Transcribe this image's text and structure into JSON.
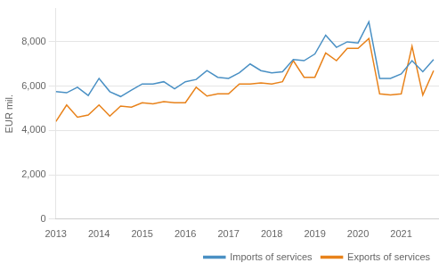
{
  "chart_data": {
    "type": "line",
    "y_label": "EUR mil.",
    "x": [
      2013,
      2013.25,
      2013.5,
      2013.75,
      2014,
      2014.25,
      2014.5,
      2014.75,
      2015,
      2015.25,
      2015.5,
      2015.75,
      2016,
      2016.25,
      2016.5,
      2016.75,
      2017,
      2017.25,
      2017.5,
      2017.75,
      2018,
      2018.25,
      2018.5,
      2018.75,
      2019,
      2019.25,
      2019.5,
      2019.75,
      2020,
      2020.25,
      2020.5,
      2020.75,
      2021,
      2021.25,
      2021.5,
      2021.75
    ],
    "series": [
      {
        "name": "Imports of services",
        "color": "#4A90C4",
        "values": [
          5750,
          5700,
          5950,
          5580,
          6350,
          5750,
          5530,
          5820,
          6100,
          6100,
          6200,
          5880,
          6200,
          6300,
          6700,
          6400,
          6350,
          6600,
          7000,
          6700,
          6600,
          6650,
          7200,
          7150,
          7450,
          8300,
          7750,
          8000,
          7950,
          8900,
          6350,
          6350,
          6550,
          7150,
          6650,
          7200
        ]
      },
      {
        "name": "Exports of services",
        "color": "#E8821A",
        "values": [
          4400,
          5150,
          4600,
          4700,
          5150,
          4650,
          5100,
          5050,
          5250,
          5200,
          5300,
          5250,
          5250,
          5950,
          5550,
          5650,
          5650,
          6100,
          6100,
          6150,
          6100,
          6200,
          7150,
          6400,
          6400,
          7500,
          7150,
          7700,
          7700,
          8150,
          5650,
          5600,
          5650,
          7800,
          5600,
          6700
        ]
      }
    ],
    "xlim": [
      2013.0,
      2021.875
    ],
    "xticks": [
      2013,
      2014,
      2015,
      2016,
      2017,
      2018,
      2019,
      2020,
      2021
    ],
    "ylim": [
      0,
      9500
    ],
    "yticks": [
      0,
      {
        "value": 2000,
        "label": "2,000"
      },
      {
        "value": 4000,
        "label": "4,000"
      },
      {
        "value": 6000,
        "label": "6,000"
      },
      {
        "value": 8000,
        "label": "8,000"
      }
    ],
    "grid": "y",
    "legend": "lower right",
    "marker": "none",
    "line_style": "solid"
  }
}
